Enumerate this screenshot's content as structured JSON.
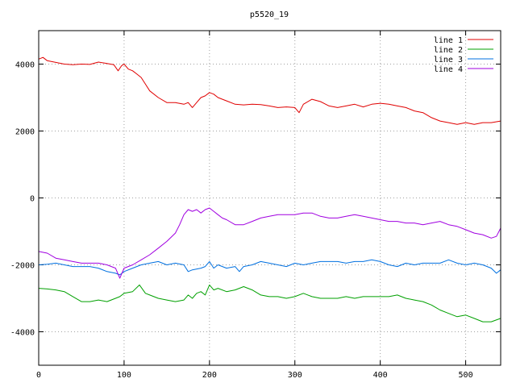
{
  "chart_data": {
    "type": "line",
    "title": "p5520_19",
    "xlabel": "",
    "ylabel": "",
    "xlim": [
      0,
      541
    ],
    "ylim": [
      -5000,
      5000
    ],
    "x_ticks": [
      0,
      100,
      200,
      300,
      400,
      500
    ],
    "y_ticks": [
      -4000,
      -2000,
      0,
      2000,
      4000
    ],
    "x_tick_labels": [
      "0",
      "100",
      "200",
      "300",
      "400",
      "500"
    ],
    "y_tick_labels": [
      "-4000",
      "-2000",
      "0",
      "2000",
      "4000"
    ],
    "grid": true,
    "legend_position": "top-right",
    "series": [
      {
        "name": "line 1",
        "color": "#e00000",
        "points": [
          [
            0,
            4150
          ],
          [
            5,
            4200
          ],
          [
            10,
            4100
          ],
          [
            20,
            4050
          ],
          [
            30,
            4000
          ],
          [
            40,
            3980
          ],
          [
            50,
            4000
          ],
          [
            60,
            3990
          ],
          [
            70,
            4060
          ],
          [
            80,
            4020
          ],
          [
            88,
            3980
          ],
          [
            93,
            3800
          ],
          [
            97,
            3950
          ],
          [
            100,
            4000
          ],
          [
            105,
            3850
          ],
          [
            110,
            3800
          ],
          [
            115,
            3700
          ],
          [
            120,
            3600
          ],
          [
            125,
            3400
          ],
          [
            130,
            3200
          ],
          [
            140,
            3000
          ],
          [
            150,
            2850
          ],
          [
            160,
            2850
          ],
          [
            170,
            2800
          ],
          [
            175,
            2850
          ],
          [
            180,
            2700
          ],
          [
            185,
            2850
          ],
          [
            190,
            3000
          ],
          [
            195,
            3050
          ],
          [
            200,
            3150
          ],
          [
            205,
            3100
          ],
          [
            210,
            3000
          ],
          [
            220,
            2900
          ],
          [
            230,
            2800
          ],
          [
            240,
            2780
          ],
          [
            250,
            2800
          ],
          [
            260,
            2790
          ],
          [
            270,
            2750
          ],
          [
            280,
            2700
          ],
          [
            290,
            2720
          ],
          [
            300,
            2700
          ],
          [
            305,
            2550
          ],
          [
            310,
            2800
          ],
          [
            320,
            2950
          ],
          [
            330,
            2880
          ],
          [
            340,
            2750
          ],
          [
            350,
            2700
          ],
          [
            360,
            2750
          ],
          [
            370,
            2800
          ],
          [
            380,
            2720
          ],
          [
            390,
            2800
          ],
          [
            400,
            2830
          ],
          [
            410,
            2800
          ],
          [
            420,
            2750
          ],
          [
            430,
            2700
          ],
          [
            440,
            2600
          ],
          [
            450,
            2550
          ],
          [
            460,
            2400
          ],
          [
            470,
            2300
          ],
          [
            480,
            2250
          ],
          [
            490,
            2200
          ],
          [
            500,
            2250
          ],
          [
            510,
            2200
          ],
          [
            520,
            2250
          ],
          [
            530,
            2250
          ],
          [
            541,
            2300
          ]
        ]
      },
      {
        "name": "line 2",
        "color": "#00a000",
        "points": [
          [
            0,
            -2700
          ],
          [
            10,
            -2720
          ],
          [
            20,
            -2750
          ],
          [
            30,
            -2800
          ],
          [
            40,
            -2950
          ],
          [
            50,
            -3100
          ],
          [
            60,
            -3100
          ],
          [
            70,
            -3050
          ],
          [
            80,
            -3100
          ],
          [
            90,
            -3000
          ],
          [
            95,
            -2950
          ],
          [
            100,
            -2850
          ],
          [
            110,
            -2800
          ],
          [
            118,
            -2600
          ],
          [
            125,
            -2850
          ],
          [
            130,
            -2900
          ],
          [
            140,
            -3000
          ],
          [
            150,
            -3050
          ],
          [
            160,
            -3100
          ],
          [
            170,
            -3050
          ],
          [
            175,
            -2900
          ],
          [
            180,
            -3000
          ],
          [
            185,
            -2850
          ],
          [
            190,
            -2800
          ],
          [
            195,
            -2900
          ],
          [
            200,
            -2600
          ],
          [
            205,
            -2750
          ],
          [
            210,
            -2700
          ],
          [
            220,
            -2800
          ],
          [
            230,
            -2750
          ],
          [
            240,
            -2650
          ],
          [
            250,
            -2750
          ],
          [
            260,
            -2900
          ],
          [
            270,
            -2950
          ],
          [
            280,
            -2950
          ],
          [
            290,
            -3000
          ],
          [
            300,
            -2950
          ],
          [
            310,
            -2850
          ],
          [
            320,
            -2950
          ],
          [
            330,
            -3000
          ],
          [
            340,
            -3000
          ],
          [
            350,
            -3000
          ],
          [
            360,
            -2950
          ],
          [
            370,
            -3000
          ],
          [
            380,
            -2950
          ],
          [
            390,
            -2950
          ],
          [
            400,
            -2950
          ],
          [
            410,
            -2950
          ],
          [
            420,
            -2900
          ],
          [
            430,
            -3000
          ],
          [
            440,
            -3050
          ],
          [
            450,
            -3100
          ],
          [
            460,
            -3200
          ],
          [
            470,
            -3350
          ],
          [
            480,
            -3450
          ],
          [
            490,
            -3550
          ],
          [
            500,
            -3500
          ],
          [
            510,
            -3600
          ],
          [
            520,
            -3700
          ],
          [
            530,
            -3700
          ],
          [
            541,
            -3600
          ]
        ]
      },
      {
        "name": "line 3",
        "color": "#0070e0",
        "points": [
          [
            0,
            -2000
          ],
          [
            10,
            -1980
          ],
          [
            20,
            -1950
          ],
          [
            30,
            -2000
          ],
          [
            40,
            -2050
          ],
          [
            50,
            -2050
          ],
          [
            60,
            -2050
          ],
          [
            70,
            -2100
          ],
          [
            80,
            -2200
          ],
          [
            90,
            -2250
          ],
          [
            95,
            -2300
          ],
          [
            100,
            -2200
          ],
          [
            110,
            -2100
          ],
          [
            120,
            -2000
          ],
          [
            130,
            -1950
          ],
          [
            140,
            -1900
          ],
          [
            150,
            -2000
          ],
          [
            160,
            -1950
          ],
          [
            170,
            -2000
          ],
          [
            175,
            -2200
          ],
          [
            180,
            -2150
          ],
          [
            190,
            -2100
          ],
          [
            195,
            -2050
          ],
          [
            200,
            -1900
          ],
          [
            205,
            -2100
          ],
          [
            210,
            -2000
          ],
          [
            220,
            -2100
          ],
          [
            230,
            -2050
          ],
          [
            235,
            -2200
          ],
          [
            240,
            -2050
          ],
          [
            250,
            -2000
          ],
          [
            260,
            -1900
          ],
          [
            270,
            -1950
          ],
          [
            280,
            -2000
          ],
          [
            290,
            -2050
          ],
          [
            300,
            -1950
          ],
          [
            310,
            -2000
          ],
          [
            320,
            -1950
          ],
          [
            330,
            -1900
          ],
          [
            340,
            -1900
          ],
          [
            350,
            -1900
          ],
          [
            360,
            -1950
          ],
          [
            370,
            -1900
          ],
          [
            380,
            -1900
          ],
          [
            390,
            -1850
          ],
          [
            400,
            -1900
          ],
          [
            410,
            -2000
          ],
          [
            420,
            -2050
          ],
          [
            430,
            -1950
          ],
          [
            440,
            -2000
          ],
          [
            450,
            -1950
          ],
          [
            460,
            -1950
          ],
          [
            470,
            -1950
          ],
          [
            480,
            -1850
          ],
          [
            490,
            -1950
          ],
          [
            500,
            -2000
          ],
          [
            510,
            -1950
          ],
          [
            520,
            -2000
          ],
          [
            530,
            -2100
          ],
          [
            536,
            -2250
          ],
          [
            541,
            -2150
          ]
        ]
      },
      {
        "name": "line 4",
        "color": "#a000e0",
        "points": [
          [
            0,
            -1600
          ],
          [
            10,
            -1650
          ],
          [
            20,
            -1800
          ],
          [
            30,
            -1850
          ],
          [
            40,
            -1900
          ],
          [
            50,
            -1950
          ],
          [
            60,
            -1950
          ],
          [
            70,
            -1950
          ],
          [
            80,
            -2000
          ],
          [
            90,
            -2100
          ],
          [
            95,
            -2400
          ],
          [
            100,
            -2100
          ],
          [
            110,
            -2000
          ],
          [
            120,
            -1850
          ],
          [
            130,
            -1700
          ],
          [
            140,
            -1500
          ],
          [
            150,
            -1300
          ],
          [
            160,
            -1050
          ],
          [
            165,
            -800
          ],
          [
            170,
            -500
          ],
          [
            175,
            -350
          ],
          [
            180,
            -400
          ],
          [
            185,
            -350
          ],
          [
            190,
            -450
          ],
          [
            195,
            -350
          ],
          [
            200,
            -300
          ],
          [
            205,
            -400
          ],
          [
            210,
            -500
          ],
          [
            215,
            -600
          ],
          [
            220,
            -650
          ],
          [
            230,
            -800
          ],
          [
            240,
            -800
          ],
          [
            250,
            -700
          ],
          [
            260,
            -600
          ],
          [
            270,
            -550
          ],
          [
            280,
            -500
          ],
          [
            290,
            -500
          ],
          [
            300,
            -500
          ],
          [
            310,
            -450
          ],
          [
            320,
            -450
          ],
          [
            330,
            -550
          ],
          [
            340,
            -600
          ],
          [
            350,
            -600
          ],
          [
            360,
            -550
          ],
          [
            370,
            -500
          ],
          [
            380,
            -550
          ],
          [
            390,
            -600
          ],
          [
            400,
            -650
          ],
          [
            410,
            -700
          ],
          [
            420,
            -700
          ],
          [
            430,
            -750
          ],
          [
            440,
            -750
          ],
          [
            450,
            -800
          ],
          [
            460,
            -750
          ],
          [
            470,
            -700
          ],
          [
            480,
            -800
          ],
          [
            490,
            -850
          ],
          [
            500,
            -950
          ],
          [
            510,
            -1050
          ],
          [
            520,
            -1100
          ],
          [
            530,
            -1200
          ],
          [
            536,
            -1150
          ],
          [
            541,
            -900
          ]
        ]
      }
    ]
  }
}
